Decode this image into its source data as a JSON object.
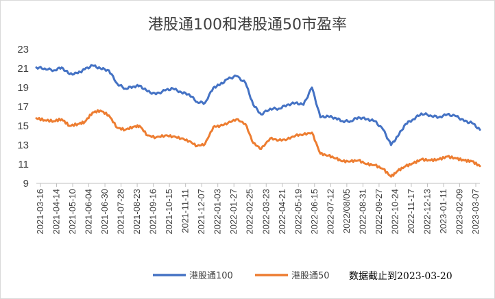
{
  "chart_data": {
    "type": "line",
    "title": "港股通100和港股通50市盈率",
    "xlabel": "",
    "ylabel": "",
    "ylim": [
      9,
      23
    ],
    "yticks": [
      9,
      11,
      13,
      15,
      17,
      19,
      21,
      23
    ],
    "grid": false,
    "legend_position": "bottom",
    "x_tick_labels": [
      "2021-03-16",
      "2021-04-14",
      "2021-05-10",
      "2021-06-04",
      "2021-06-30",
      "2021-07-28",
      "2021-08-23",
      "2021-09-16",
      "2021-10-15",
      "2021-11-11",
      "2021-12-07",
      "2022-01-03",
      "2022-01-27",
      "2022-02-25",
      "2022-03-23",
      "2022-04-21",
      "2022-05-19",
      "2022-06-15",
      "2022-07-12",
      "2022/08/05",
      "2022-08-31",
      "2022-09-27",
      "2022-10-24",
      "2022-11-17",
      "2022-12-13",
      "2023-01-11",
      "2023-02-09",
      "2023-03-07"
    ],
    "x": [
      "2021-03-16",
      "2021-03-30",
      "2021-04-14",
      "2021-04-27",
      "2021-05-10",
      "2021-05-24",
      "2021-06-04",
      "2021-06-17",
      "2021-06-30",
      "2021-07-14",
      "2021-07-28",
      "2021-08-10",
      "2021-08-23",
      "2021-09-03",
      "2021-09-16",
      "2021-09-30",
      "2021-10-15",
      "2021-10-28",
      "2021-11-11",
      "2021-11-24",
      "2021-12-07",
      "2021-12-20",
      "2022-01-03",
      "2022-01-14",
      "2022-01-27",
      "2022-02-10",
      "2022-02-25",
      "2022-03-10",
      "2022-03-23",
      "2022-04-07",
      "2022-04-21",
      "2022-05-05",
      "2022-05-19",
      "2022-06-01",
      "2022-06-15",
      "2022-06-29",
      "2022-07-12",
      "2022-07-25",
      "2022-08-05",
      "2022-08-18",
      "2022-08-31",
      "2022-09-14",
      "2022-09-27",
      "2022-10-11",
      "2022-10-24",
      "2022-11-04",
      "2022-11-17",
      "2022-11-30",
      "2022-12-13",
      "2022-12-28",
      "2023-01-11",
      "2023-01-25",
      "2023-02-09",
      "2023-02-22",
      "2023-03-07",
      "2023-03-20"
    ],
    "series": [
      {
        "name": "港股通100",
        "color": "#4472c4",
        "values": [
          21.1,
          21.0,
          20.8,
          21.1,
          20.4,
          20.5,
          20.9,
          21.3,
          21.0,
          20.8,
          19.4,
          18.9,
          19.1,
          19.2,
          18.6,
          18.3,
          18.7,
          18.9,
          18.5,
          18.3,
          17.5,
          17.4,
          19.0,
          19.3,
          19.9,
          20.2,
          19.5,
          17.2,
          16.2,
          16.8,
          16.8,
          17.2,
          17.4,
          17.2,
          19.0,
          15.9,
          16.0,
          15.8,
          15.5,
          15.5,
          15.9,
          15.7,
          15.5,
          14.6,
          13.0,
          13.9,
          15.2,
          15.7,
          16.3,
          16.1,
          15.9,
          16.2,
          16.0,
          15.5,
          15.3,
          14.6
        ]
      },
      {
        "name": "港股通50",
        "color": "#ed7d31",
        "values": [
          15.8,
          15.6,
          15.5,
          15.7,
          15.0,
          15.2,
          15.4,
          16.4,
          16.6,
          16.1,
          14.8,
          14.6,
          14.9,
          15.0,
          14.0,
          13.8,
          14.0,
          13.9,
          13.7,
          13.4,
          12.9,
          13.1,
          14.9,
          15.0,
          15.3,
          15.7,
          15.2,
          13.2,
          12.6,
          13.7,
          13.5,
          13.6,
          14.0,
          14.1,
          14.3,
          12.1,
          11.9,
          11.6,
          11.3,
          11.3,
          11.4,
          11.0,
          10.9,
          10.5,
          9.7,
          10.3,
          10.8,
          11.1,
          11.5,
          11.4,
          11.5,
          11.8,
          11.6,
          11.4,
          11.3,
          10.8
        ]
      }
    ],
    "annotations": [
      "数据截止到2023-03-20"
    ]
  }
}
